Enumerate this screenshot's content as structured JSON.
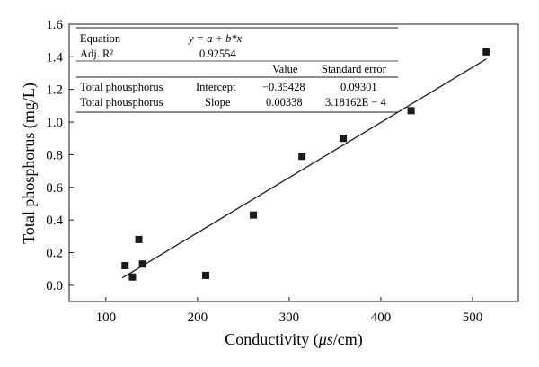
{
  "chart_data": {
    "type": "scatter",
    "xlabel_main": "Conductivity (",
    "xlabel_unit": "μs",
    "xlabel_tail": "/cm)",
    "ylabel": "Total phosphorus (mg/L)",
    "xlim": [
      60,
      550
    ],
    "ylim": [
      -0.1,
      1.6
    ],
    "xticks": [
      100,
      200,
      300,
      400,
      500
    ],
    "yticks": [
      0.0,
      0.2,
      0.4,
      0.6,
      0.8,
      1.0,
      1.2,
      1.4,
      1.6
    ],
    "xtick_labels": [
      "100",
      "200",
      "300",
      "400",
      "500"
    ],
    "ytick_labels": [
      "0.0",
      "0.2",
      "0.4",
      "0.6",
      "0.8",
      "1.0",
      "1.2",
      "1.4",
      "1.6"
    ],
    "points": [
      {
        "x": 121,
        "y": 0.12
      },
      {
        "x": 129,
        "y": 0.05
      },
      {
        "x": 136,
        "y": 0.28
      },
      {
        "x": 140,
        "y": 0.13
      },
      {
        "x": 209,
        "y": 0.06
      },
      {
        "x": 261,
        "y": 0.43
      },
      {
        "x": 314,
        "y": 0.79
      },
      {
        "x": 359,
        "y": 0.9
      },
      {
        "x": 433,
        "y": 1.07
      },
      {
        "x": 515,
        "y": 1.43
      }
    ],
    "fit": {
      "intercept": -0.35428,
      "slope": 0.00338,
      "x_range": [
        118,
        515
      ]
    },
    "marker_color": "#1a1a1a",
    "line_color": "#1a1a1a"
  },
  "stats_table": {
    "equation_label": "Equation",
    "equation_text": "y = a + b*x",
    "adjr2_label": "Adj. R²",
    "adjr2_value": "0.92554",
    "col_value": "Value",
    "col_stderr": "Standard error",
    "rows": [
      {
        "name": "Total phousphorus",
        "param": "Intercept",
        "value": "−0.35428",
        "stderr": "0.09301"
      },
      {
        "name": "Total phousphorus",
        "param": "Slope",
        "value": "0.00338",
        "stderr": "3.18162E − 4"
      }
    ]
  }
}
